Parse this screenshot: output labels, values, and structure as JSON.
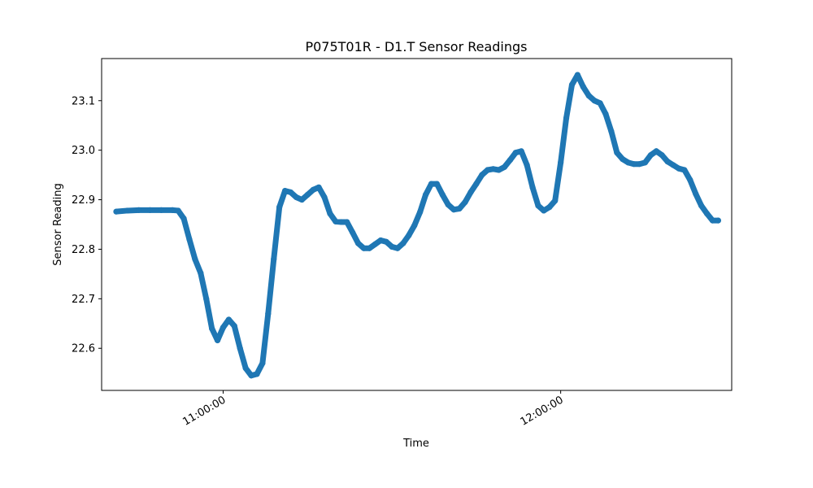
{
  "chart_data": {
    "type": "line",
    "title": "P075T01R - D1.T Sensor Readings",
    "xlabel": "Time",
    "ylabel": "Sensor Reading",
    "x_ticks": [
      "11:00:00",
      "12:00:00"
    ],
    "y_ticks": [
      "22.6",
      "22.7",
      "22.8",
      "22.9",
      "23.0",
      "23.1"
    ],
    "ylim": [
      22.515,
      23.185
    ],
    "xlim": [
      "10:38:24",
      "12:30:24"
    ],
    "grid": false,
    "legend": "none",
    "series": [
      {
        "color": "#1f77b4",
        "x": [
          "10:41:00",
          "10:43:00",
          "10:45:00",
          "10:47:00",
          "10:49:00",
          "10:51:00",
          "10:52:00",
          "10:53:00",
          "10:54:00",
          "10:55:00",
          "10:56:00",
          "10:57:00",
          "10:58:00",
          "10:59:00",
          "11:00:00",
          "11:01:00",
          "11:02:00",
          "11:03:00",
          "11:04:00",
          "11:05:00",
          "11:06:00",
          "11:07:00",
          "11:08:00",
          "11:09:00",
          "11:10:00",
          "11:11:00",
          "11:12:00",
          "11:13:00",
          "11:14:00",
          "11:15:00",
          "11:16:00",
          "11:17:00",
          "11:18:00",
          "11:19:00",
          "11:20:00",
          "11:21:00",
          "11:22:00",
          "11:23:00",
          "11:24:00",
          "11:25:00",
          "11:26:00",
          "11:27:00",
          "11:28:00",
          "11:29:00",
          "11:30:00",
          "11:31:00",
          "11:32:00",
          "11:33:00",
          "11:34:00",
          "11:35:00",
          "11:36:00",
          "11:37:00",
          "11:38:00",
          "11:39:00",
          "11:40:00",
          "11:41:00",
          "11:42:00",
          "11:43:00",
          "11:44:00",
          "11:45:00",
          "11:46:00",
          "11:47:00",
          "11:48:00",
          "11:49:00",
          "11:50:00",
          "11:51:00",
          "11:52:00",
          "11:53:00",
          "11:54:00",
          "11:55:00",
          "11:56:00",
          "11:57:00",
          "11:58:00",
          "11:59:00",
          "12:00:00",
          "12:01:00",
          "12:02:00",
          "12:03:00",
          "12:04:00",
          "12:05:00",
          "12:06:00",
          "12:07:00",
          "12:08:00",
          "12:09:00",
          "12:10:00",
          "12:11:00",
          "12:12:00",
          "12:13:00",
          "12:14:00",
          "12:15:00",
          "12:16:00",
          "12:17:00",
          "12:18:00",
          "12:19:00",
          "12:20:00",
          "12:21:00",
          "12:22:00",
          "12:23:00",
          "12:24:00",
          "12:25:00",
          "12:26:00",
          "12:27:00",
          "12:28:00"
        ],
        "y": [
          22.876,
          22.878,
          22.879,
          22.879,
          22.879,
          22.879,
          22.878,
          22.862,
          22.82,
          22.78,
          22.752,
          22.7,
          22.64,
          22.616,
          22.642,
          22.658,
          22.645,
          22.6,
          22.56,
          22.545,
          22.548,
          22.57,
          22.67,
          22.78,
          22.885,
          22.918,
          22.915,
          22.905,
          22.9,
          22.91,
          22.92,
          22.925,
          22.905,
          22.872,
          22.856,
          22.855,
          22.855,
          22.834,
          22.812,
          22.802,
          22.802,
          22.81,
          22.818,
          22.815,
          22.805,
          22.802,
          22.812,
          22.828,
          22.848,
          22.875,
          22.91,
          22.932,
          22.932,
          22.91,
          22.89,
          22.88,
          22.882,
          22.895,
          22.915,
          22.932,
          22.95,
          22.96,
          22.962,
          22.96,
          22.966,
          22.98,
          22.995,
          22.998,
          22.97,
          22.925,
          22.888,
          22.878,
          22.885,
          22.898,
          22.975,
          23.065,
          23.132,
          23.152,
          23.128,
          23.11,
          23.1,
          23.095,
          23.073,
          23.038,
          22.995,
          22.982,
          22.975,
          22.972,
          22.972,
          22.975,
          22.99,
          22.998,
          22.99,
          22.977,
          22.97,
          22.963,
          22.96,
          22.94,
          22.912,
          22.888,
          22.872,
          22.858,
          22.858
        ]
      }
    ]
  }
}
